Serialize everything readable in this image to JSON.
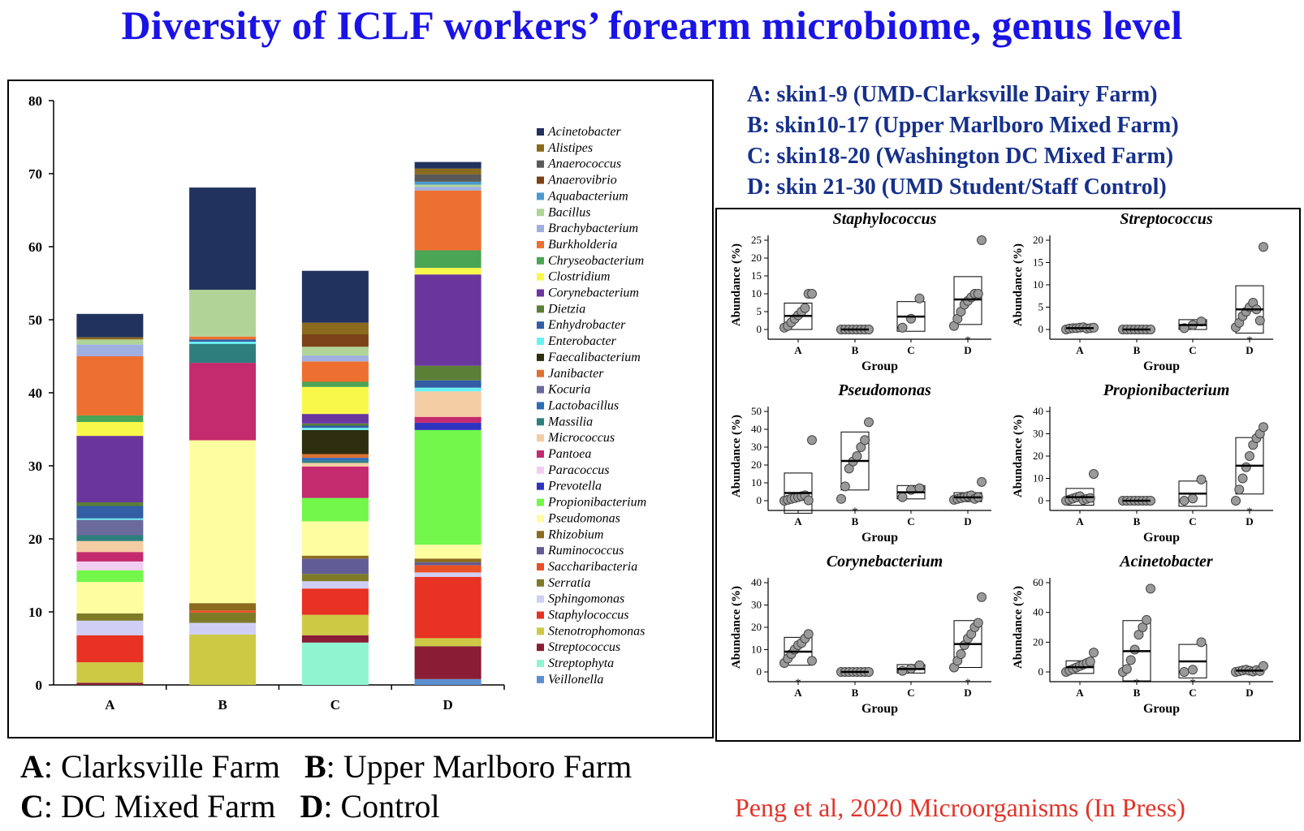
{
  "title": "Diversity of ICLF workers’ forearm microbiome,  genus level",
  "sites": [
    "A: skin1-9 (UMD-Clarksville Dairy Farm)",
    "B: skin10-17 (Upper Marlboro Mixed Farm)",
    "C: skin18-20 (Washington DC Mixed Farm)",
    "D: skin 21-30 (UMD Student/Staff Control)"
  ],
  "footer": {
    "a_key": "A",
    "a_text": ": Clarksville Farm",
    "b_key": "B",
    "b_text": ": Upper Marlboro Farm",
    "c_key": "C",
    "c_text": ":  DC Mixed Farm",
    "d_key": "D",
    "d_text": ": Control"
  },
  "citation": "Peng et al, 2020 Microorganisms (In Press)",
  "chart_data": [
    {
      "type": "bar",
      "stacked": true,
      "categories": [
        "A",
        "B",
        "C",
        "D"
      ],
      "ylim": [
        0,
        80
      ],
      "yticks": [
        0,
        10,
        20,
        30,
        40,
        50,
        60,
        70,
        80
      ],
      "legend_position": "right",
      "series": [
        {
          "name": "Veillonella",
          "color": "#5b8fd0",
          "values": [
            0,
            0,
            0,
            0.8
          ]
        },
        {
          "name": "Streptophyta",
          "color": "#8ff5d0",
          "values": [
            0,
            0,
            5.8,
            0
          ]
        },
        {
          "name": "Streptococcus",
          "color": "#8a1c35",
          "values": [
            0.3,
            0,
            1.0,
            4.5
          ]
        },
        {
          "name": "Stenotrophomonas",
          "color": "#cdc944",
          "values": [
            2.8,
            6.9,
            2.8,
            1.1
          ]
        },
        {
          "name": "Staphylococcus",
          "color": "#e83223",
          "values": [
            3.7,
            0,
            3.6,
            8.4
          ]
        },
        {
          "name": "Sphingomonas",
          "color": "#cfcff5",
          "values": [
            2.0,
            1.6,
            1.0,
            0.6
          ]
        },
        {
          "name": "Serratia",
          "color": "#7e7b27",
          "values": [
            1.0,
            1.4,
            1.0,
            0
          ]
        },
        {
          "name": "Saccharibacteria",
          "color": "#ea4f26",
          "values": [
            0,
            0.3,
            0,
            1.0
          ]
        },
        {
          "name": "Ruminococcus",
          "color": "#625c94",
          "values": [
            0,
            0,
            2.1,
            0.4
          ]
        },
        {
          "name": "Rhizobium",
          "color": "#8b6b1c",
          "values": [
            0,
            1.0,
            0.4,
            0.5
          ]
        },
        {
          "name": "Pseudomonas",
          "color": "#fdfea0",
          "values": [
            4.3,
            22.3,
            4.7,
            1.9
          ]
        },
        {
          "name": "Propionibacterium",
          "color": "#72f74a",
          "values": [
            1.6,
            0,
            3.2,
            15.7
          ]
        },
        {
          "name": "Prevotella",
          "color": "#2f34c0",
          "values": [
            0,
            0,
            0,
            1.0
          ]
        },
        {
          "name": "Paracoccus",
          "color": "#f2cdf2",
          "values": [
            1.2,
            0,
            0,
            0
          ]
        },
        {
          "name": "Pantoea",
          "color": "#c42a6e",
          "values": [
            1.3,
            10.6,
            4.3,
            0.8
          ]
        },
        {
          "name": "Micrococcus",
          "color": "#f5cda4",
          "values": [
            1.5,
            0,
            0.5,
            3.5
          ]
        },
        {
          "name": "Massilia",
          "color": "#2f7e7e",
          "values": [
            0.8,
            2.6,
            0.3,
            0
          ]
        },
        {
          "name": "Lactobacillus",
          "color": "#2c6db5",
          "values": [
            0,
            0,
            0.4,
            0
          ]
        },
        {
          "name": "Kocuria",
          "color": "#6a6a9c",
          "values": [
            2.1,
            0,
            0,
            0
          ]
        },
        {
          "name": "Janibacter",
          "color": "#e07030",
          "values": [
            0,
            0,
            0.5,
            0
          ]
        },
        {
          "name": "Faecalibacterium",
          "color": "#2d2d0f",
          "values": [
            0,
            0,
            3.3,
            0
          ]
        },
        {
          "name": "Enterobacter",
          "color": "#6af2f2",
          "values": [
            0.2,
            0.3,
            0.3,
            0.5
          ]
        },
        {
          "name": "Enhydrobacter",
          "color": "#335da5",
          "values": [
            1.7,
            0.3,
            0.3,
            1.0
          ]
        },
        {
          "name": "Dietzia",
          "color": "#5a7f37",
          "values": [
            0.5,
            0,
            0.3,
            2.0
          ]
        },
        {
          "name": "Corynebacterium",
          "color": "#6a369e",
          "values": [
            9.1,
            0,
            1.3,
            12.5
          ]
        },
        {
          "name": "Clostridium",
          "color": "#f8f84a",
          "values": [
            1.9,
            0,
            3.7,
            0.9
          ]
        },
        {
          "name": "Chryseobacterium",
          "color": "#4aa555",
          "values": [
            0.9,
            0,
            0.7,
            2.4
          ]
        },
        {
          "name": "Burkholderia",
          "color": "#ed7030",
          "values": [
            8.1,
            0.4,
            2.8,
            8.2
          ]
        },
        {
          "name": "Brachybacterium",
          "color": "#9fb0e0",
          "values": [
            1.6,
            0,
            0.8,
            0.5
          ]
        },
        {
          "name": "Bacillus",
          "color": "#b0d498",
          "values": [
            0.7,
            6.4,
            1.2,
            0.3
          ]
        },
        {
          "name": "Aquabacterium",
          "color": "#4a9ad0",
          "values": [
            0,
            0,
            0,
            0.4
          ]
        },
        {
          "name": "Anaerovibrio",
          "color": "#7c4119",
          "values": [
            0,
            0,
            1.7,
            0
          ]
        },
        {
          "name": "Anaerococcus",
          "color": "#595959",
          "values": [
            0,
            0,
            0,
            1.0
          ]
        },
        {
          "name": "Alistipes",
          "color": "#8a6a1c",
          "values": [
            0.3,
            0,
            1.6,
            0.8
          ]
        },
        {
          "name": "Acinetobacter",
          "color": "#22325e",
          "values": [
            3.2,
            14.0,
            7.1,
            0.9
          ]
        }
      ]
    },
    {
      "type": "box",
      "title": "Staphylococcus",
      "xlabel": "Group",
      "ylabel": "Abundance (%)",
      "categories": [
        "A",
        "B",
        "C",
        "D"
      ],
      "ylim": [
        0,
        25
      ],
      "yticks": [
        0,
        5,
        10,
        15,
        20,
        25
      ],
      "boxes": [
        {
          "group": "A",
          "low": 0,
          "median": 3.8,
          "high": 7.4,
          "points": [
            0.5,
            1,
            2,
            3,
            4,
            5,
            6,
            10,
            10
          ],
          "star": false
        },
        {
          "group": "B",
          "low": 0,
          "median": 0,
          "high": 0,
          "points": [
            0,
            0,
            0,
            0,
            0,
            0,
            0,
            0
          ],
          "star": false
        },
        {
          "group": "C",
          "low": -0.5,
          "median": 3.6,
          "high": 7.8,
          "points": [
            0.5,
            3,
            8.7
          ],
          "star": false
        },
        {
          "group": "D",
          "low": 1.4,
          "median": 8.4,
          "high": 14.8,
          "points": [
            1,
            3,
            5,
            7,
            8,
            9,
            10,
            10,
            25
          ],
          "star": true
        }
      ]
    },
    {
      "type": "box",
      "title": "Streptococcus",
      "xlabel": "Group",
      "ylabel": "Abundance (%)",
      "categories": [
        "A",
        "B",
        "C",
        "D"
      ],
      "ylim": [
        0,
        20
      ],
      "yticks": [
        0,
        5,
        10,
        15,
        20
      ],
      "boxes": [
        {
          "group": "A",
          "low": 0,
          "median": 0.3,
          "high": 0.6,
          "points": [
            0,
            0.2,
            0.3,
            0.3,
            0.4,
            0.5,
            0.2,
            0.3,
            0.4
          ],
          "star": false
        },
        {
          "group": "B",
          "low": 0,
          "median": 0,
          "high": 0,
          "points": [
            0,
            0,
            0,
            0,
            0,
            0,
            0,
            0
          ],
          "star": false
        },
        {
          "group": "C",
          "low": 0,
          "median": 1.0,
          "high": 2.2,
          "points": [
            0.3,
            1.0,
            1.8
          ],
          "star": false
        },
        {
          "group": "D",
          "low": -0.8,
          "median": 4.5,
          "high": 9.8,
          "points": [
            0.5,
            1.5,
            3,
            4,
            5,
            6,
            4.5,
            2,
            18.5
          ],
          "star": true
        }
      ]
    },
    {
      "type": "box",
      "title": "Pseudomonas",
      "xlabel": "Group",
      "ylabel": "Abundance (%)",
      "categories": [
        "A",
        "B",
        "C",
        "D"
      ],
      "ylim": [
        0,
        50
      ],
      "yticks": [
        0,
        10,
        20,
        30,
        40,
        50
      ],
      "boxes": [
        {
          "group": "A",
          "low": -7,
          "median": 4.3,
          "high": 15.5,
          "points": [
            0,
            0.5,
            1,
            1.5,
            2,
            2.5,
            3,
            0.2,
            34
          ],
          "star": false
        },
        {
          "group": "B",
          "low": 6,
          "median": 22.3,
          "high": 38.5,
          "points": [
            1,
            8,
            18,
            22,
            25,
            30,
            34,
            44
          ],
          "star": true
        },
        {
          "group": "C",
          "low": 1,
          "median": 4.7,
          "high": 8.5,
          "points": [
            2,
            6,
            7
          ],
          "star": false
        },
        {
          "group": "D",
          "low": -0.5,
          "median": 1.9,
          "high": 4.5,
          "points": [
            0.5,
            1,
            1.5,
            2,
            2.5,
            3,
            1,
            2,
            10.5
          ],
          "star": false
        }
      ]
    },
    {
      "type": "box",
      "title": "Propionibacterium",
      "xlabel": "Group",
      "ylabel": "Abundance (%)",
      "categories": [
        "A",
        "B",
        "C",
        "D"
      ],
      "ylim": [
        0,
        40
      ],
      "yticks": [
        0,
        10,
        20,
        30,
        40
      ],
      "boxes": [
        {
          "group": "A",
          "low": -2,
          "median": 1.6,
          "high": 5.5,
          "points": [
            0,
            0.5,
            1,
            1.5,
            2,
            0.3,
            0.8,
            1.2,
            12
          ],
          "star": false
        },
        {
          "group": "B",
          "low": 0,
          "median": 0,
          "high": 0,
          "points": [
            0,
            0,
            0,
            0,
            0,
            0,
            0,
            0
          ],
          "star": false
        },
        {
          "group": "C",
          "low": -2.5,
          "median": 3.2,
          "high": 8.8,
          "points": [
            0,
            1,
            9.5
          ],
          "star": false
        },
        {
          "group": "D",
          "low": 3,
          "median": 15.7,
          "high": 28.3,
          "points": [
            0,
            5,
            10,
            15,
            20,
            25,
            28,
            30,
            33
          ],
          "star": true
        }
      ]
    },
    {
      "type": "box",
      "title": "Corynebacterium",
      "xlabel": "Group",
      "ylabel": "Abundance (%)",
      "categories": [
        "A",
        "B",
        "C",
        "D"
      ],
      "ylim": [
        0,
        40
      ],
      "yticks": [
        0,
        10,
        20,
        30,
        40
      ],
      "boxes": [
        {
          "group": "A",
          "low": 3,
          "median": 9.1,
          "high": 15.5,
          "points": [
            4,
            6,
            8,
            10,
            12,
            13,
            15,
            17,
            5
          ],
          "star": true
        },
        {
          "group": "B",
          "low": 0,
          "median": 0,
          "high": 0,
          "points": [
            0,
            0,
            0,
            0,
            0,
            0,
            0,
            0
          ],
          "star": false
        },
        {
          "group": "C",
          "low": -0.5,
          "median": 1.3,
          "high": 3.3,
          "points": [
            0.5,
            1.5,
            3
          ],
          "star": false
        },
        {
          "group": "D",
          "low": 2,
          "median": 12.5,
          "high": 23,
          "points": [
            2,
            5,
            8,
            12,
            15,
            17,
            20,
            22,
            33.5
          ],
          "star": true
        }
      ]
    },
    {
      "type": "box",
      "title": "Acinetobacter",
      "xlabel": "Group",
      "ylabel": "Abundance (%)",
      "categories": [
        "A",
        "B",
        "C",
        "D"
      ],
      "ylim": [
        0,
        60
      ],
      "yticks": [
        0,
        20,
        40,
        60
      ],
      "boxes": [
        {
          "group": "A",
          "low": -1,
          "median": 3.2,
          "high": 7.5,
          "points": [
            0,
            1,
            2,
            3,
            4,
            5,
            6,
            7,
            13
          ],
          "star": false
        },
        {
          "group": "B",
          "low": -6,
          "median": 14,
          "high": 34.5,
          "points": [
            0,
            2,
            8,
            15,
            25,
            30,
            35,
            56
          ],
          "star": true
        },
        {
          "group": "C",
          "low": -4,
          "median": 7.1,
          "high": 18.5,
          "points": [
            0,
            1.5,
            20
          ],
          "star": true
        },
        {
          "group": "D",
          "low": 0,
          "median": 0.9,
          "high": 1.8,
          "points": [
            0,
            0.5,
            1,
            1.5,
            0.8,
            0.3,
            1.2,
            0.6,
            4
          ],
          "star": false
        }
      ]
    }
  ]
}
